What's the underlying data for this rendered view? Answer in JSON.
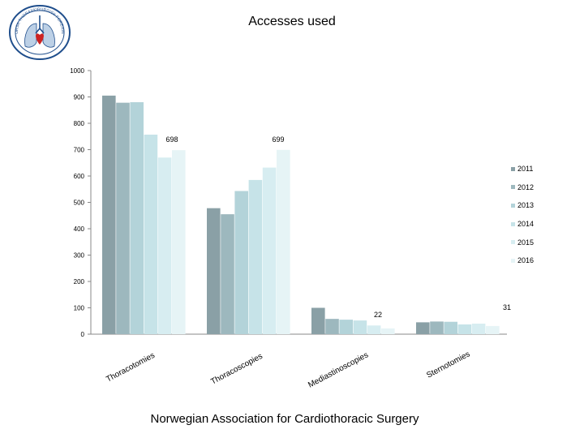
{
  "title": "Accesses used",
  "footer": "Norwegian Association for Cardiothoracic Surgery",
  "logo": {
    "name": "association-seal",
    "ring_text": "NORSK THORAXKIRURGISK FORENING"
  },
  "colors": {
    "series": [
      "#8aa0a6",
      "#9db8be",
      "#b3d3d9",
      "#c6e3e8",
      "#d7edf1",
      "#e6f4f6"
    ],
    "axis": "#888888",
    "text": "#000000",
    "logo_ring": "#1f4e8c",
    "logo_red": "#cc2222"
  },
  "chart_data": {
    "type": "bar",
    "title": "Accesses used",
    "categories": [
      "Thoracotomies",
      "Thoracoscopies",
      "Mediastinoscopies",
      "Sternotomies"
    ],
    "series": [
      {
        "name": "2011",
        "values": [
          905,
          478,
          100,
          45
        ]
      },
      {
        "name": "2012",
        "values": [
          878,
          455,
          58,
          48
        ]
      },
      {
        "name": "2013",
        "values": [
          880,
          543,
          55,
          47
        ]
      },
      {
        "name": "2014",
        "values": [
          757,
          585,
          52,
          37
        ]
      },
      {
        "name": "2015",
        "values": [
          670,
          632,
          33,
          40
        ]
      },
      {
        "name": "2016",
        "values": [
          698,
          699,
          22,
          31
        ]
      }
    ],
    "data_labels": [
      {
        "category": 0,
        "series": 5,
        "text": "698"
      },
      {
        "category": 1,
        "series": 5,
        "text": "699"
      },
      {
        "category": 2,
        "series": 5,
        "text": "22"
      },
      {
        "category": 3,
        "series": 5,
        "text": "31"
      }
    ],
    "ylim": [
      0,
      1000
    ],
    "yticks": [
      0,
      100,
      200,
      300,
      400,
      500,
      600,
      700,
      800,
      900,
      1000
    ],
    "legend_position": "right",
    "grid": false,
    "xlabel": "",
    "ylabel": ""
  }
}
